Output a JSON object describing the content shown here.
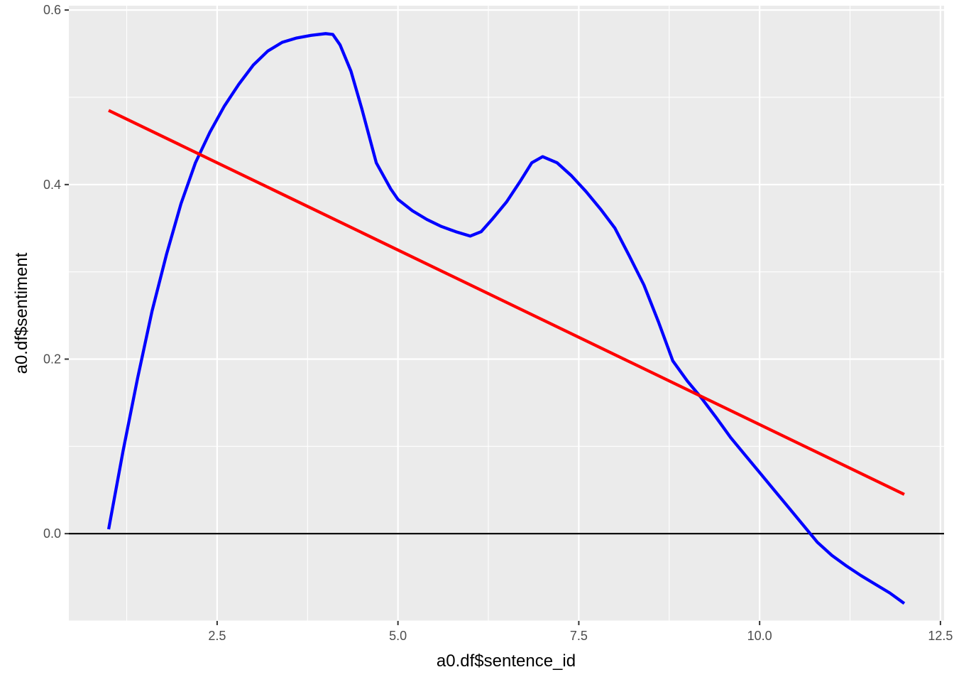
{
  "chart_data": {
    "type": "line",
    "title": "",
    "xlabel": "a0.df$sentence_id",
    "ylabel": "a0.df$sentiment",
    "xlim": [
      0.45,
      12.55
    ],
    "ylim": [
      -0.1,
      0.605
    ],
    "x_ticks": [
      2.5,
      5.0,
      7.5,
      10.0,
      12.5
    ],
    "x_tick_labels": [
      "2.5",
      "5.0",
      "7.5",
      "10.0",
      "12.5"
    ],
    "x_minor_ticks": [
      1.25,
      3.75,
      6.25,
      8.75,
      11.25
    ],
    "y_ticks": [
      0.0,
      0.2,
      0.4,
      0.6
    ],
    "y_tick_labels": [
      "0.0",
      "0.2",
      "0.4",
      "0.6"
    ],
    "y_minor_ticks": [
      -0.1,
      0.1,
      0.3,
      0.5
    ],
    "grid": true,
    "legend": "none",
    "hline": {
      "y": 0.0,
      "color": "#000000"
    },
    "series": [
      {
        "color": "#0000ff",
        "points": [
          [
            1.0,
            0.005
          ],
          [
            1.2,
            0.095
          ],
          [
            1.4,
            0.178
          ],
          [
            1.6,
            0.255
          ],
          [
            1.8,
            0.32
          ],
          [
            2.0,
            0.378
          ],
          [
            2.2,
            0.425
          ],
          [
            2.4,
            0.46
          ],
          [
            2.6,
            0.49
          ],
          [
            2.8,
            0.515
          ],
          [
            3.0,
            0.537
          ],
          [
            3.2,
            0.553
          ],
          [
            3.4,
            0.563
          ],
          [
            3.6,
            0.568
          ],
          [
            3.8,
            0.571
          ],
          [
            4.0,
            0.573
          ],
          [
            4.1,
            0.572
          ],
          [
            4.2,
            0.56
          ],
          [
            4.35,
            0.53
          ],
          [
            4.5,
            0.487
          ],
          [
            4.7,
            0.425
          ],
          [
            4.9,
            0.395
          ],
          [
            5.0,
            0.383
          ],
          [
            5.2,
            0.37
          ],
          [
            5.4,
            0.36
          ],
          [
            5.6,
            0.352
          ],
          [
            5.8,
            0.346
          ],
          [
            6.0,
            0.341
          ],
          [
            6.15,
            0.346
          ],
          [
            6.3,
            0.36
          ],
          [
            6.5,
            0.38
          ],
          [
            6.7,
            0.405
          ],
          [
            6.85,
            0.425
          ],
          [
            7.0,
            0.432
          ],
          [
            7.2,
            0.425
          ],
          [
            7.4,
            0.41
          ],
          [
            7.6,
            0.392
          ],
          [
            7.8,
            0.372
          ],
          [
            8.0,
            0.35
          ],
          [
            8.2,
            0.318
          ],
          [
            8.4,
            0.285
          ],
          [
            8.6,
            0.243
          ],
          [
            8.8,
            0.198
          ],
          [
            9.0,
            0.175
          ],
          [
            9.2,
            0.155
          ],
          [
            9.4,
            0.133
          ],
          [
            9.6,
            0.11
          ],
          [
            9.8,
            0.09
          ],
          [
            10.0,
            0.07
          ],
          [
            10.2,
            0.05
          ],
          [
            10.4,
            0.03
          ],
          [
            10.6,
            0.01
          ],
          [
            10.8,
            -0.01
          ],
          [
            11.0,
            -0.025
          ],
          [
            11.2,
            -0.037
          ],
          [
            11.4,
            -0.048
          ],
          [
            11.6,
            -0.058
          ],
          [
            11.8,
            -0.068
          ],
          [
            12.0,
            -0.08
          ]
        ]
      },
      {
        "color": "#ff0000",
        "points": [
          [
            1.0,
            0.485
          ],
          [
            12.0,
            0.045
          ]
        ]
      }
    ]
  }
}
